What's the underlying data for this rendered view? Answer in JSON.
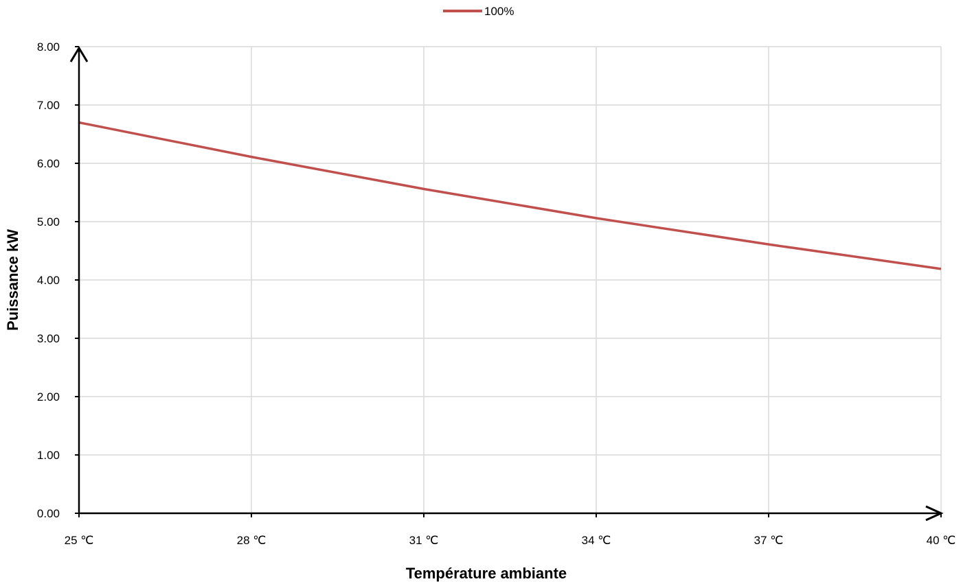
{
  "chart_data": {
    "type": "line",
    "x": [
      25,
      28,
      31,
      34,
      37,
      40
    ],
    "x_tick_labels": [
      "25 ℃",
      "28 ℃",
      "31 ℃",
      "34 ℃",
      "37 ℃",
      "40 ℃"
    ],
    "series": [
      {
        "name": "100%",
        "color": "#c0504d",
        "values": [
          6.7,
          6.11,
          5.56,
          5.06,
          4.61,
          4.19
        ]
      }
    ],
    "y_tick_labels": [
      "0.00",
      "1.00",
      "2.00",
      "3.00",
      "4.00",
      "5.00",
      "6.00",
      "7.00",
      "8.00"
    ],
    "xlabel": "Température ambiante",
    "ylabel": "Puissance kW",
    "xlim": [
      25,
      40
    ],
    "ylim": [
      0,
      8
    ],
    "grid": true,
    "legend_position": "top-center"
  }
}
